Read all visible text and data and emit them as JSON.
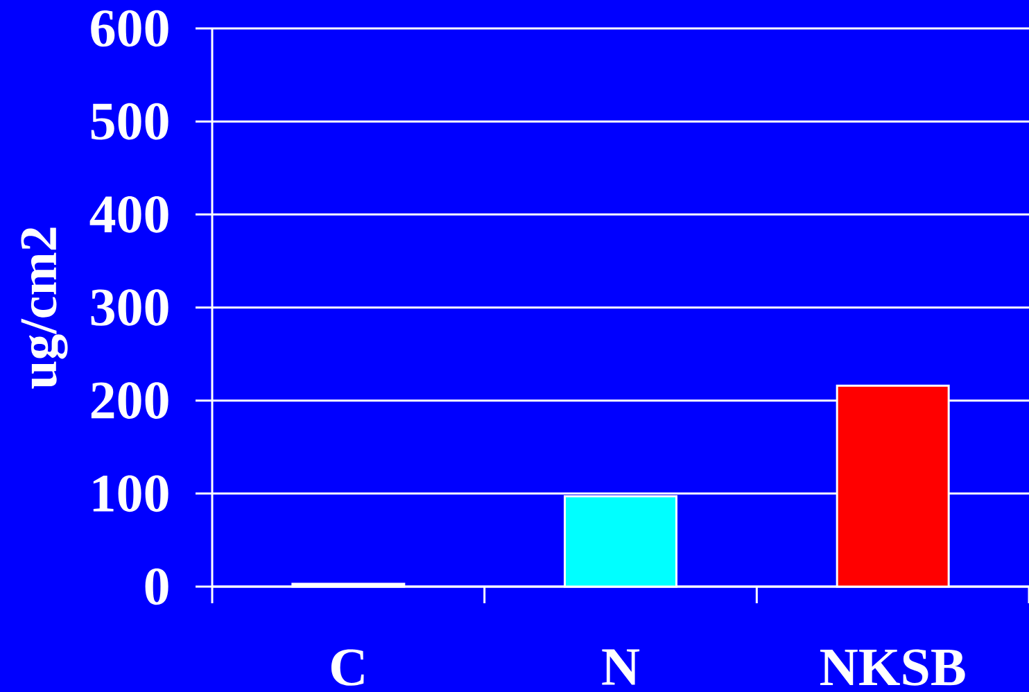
{
  "chart_data": {
    "type": "bar",
    "ylabel": "ug/cm2",
    "categories": [
      "C",
      "N",
      "NKSB"
    ],
    "values": [
      3,
      97,
      216
    ],
    "colors": [
      "#ffffff",
      "#00ffff",
      "#ff0000"
    ],
    "ylim": [
      0,
      600
    ],
    "yticks": [
      0,
      100,
      200,
      300,
      400,
      500,
      600
    ],
    "grid": "y"
  }
}
